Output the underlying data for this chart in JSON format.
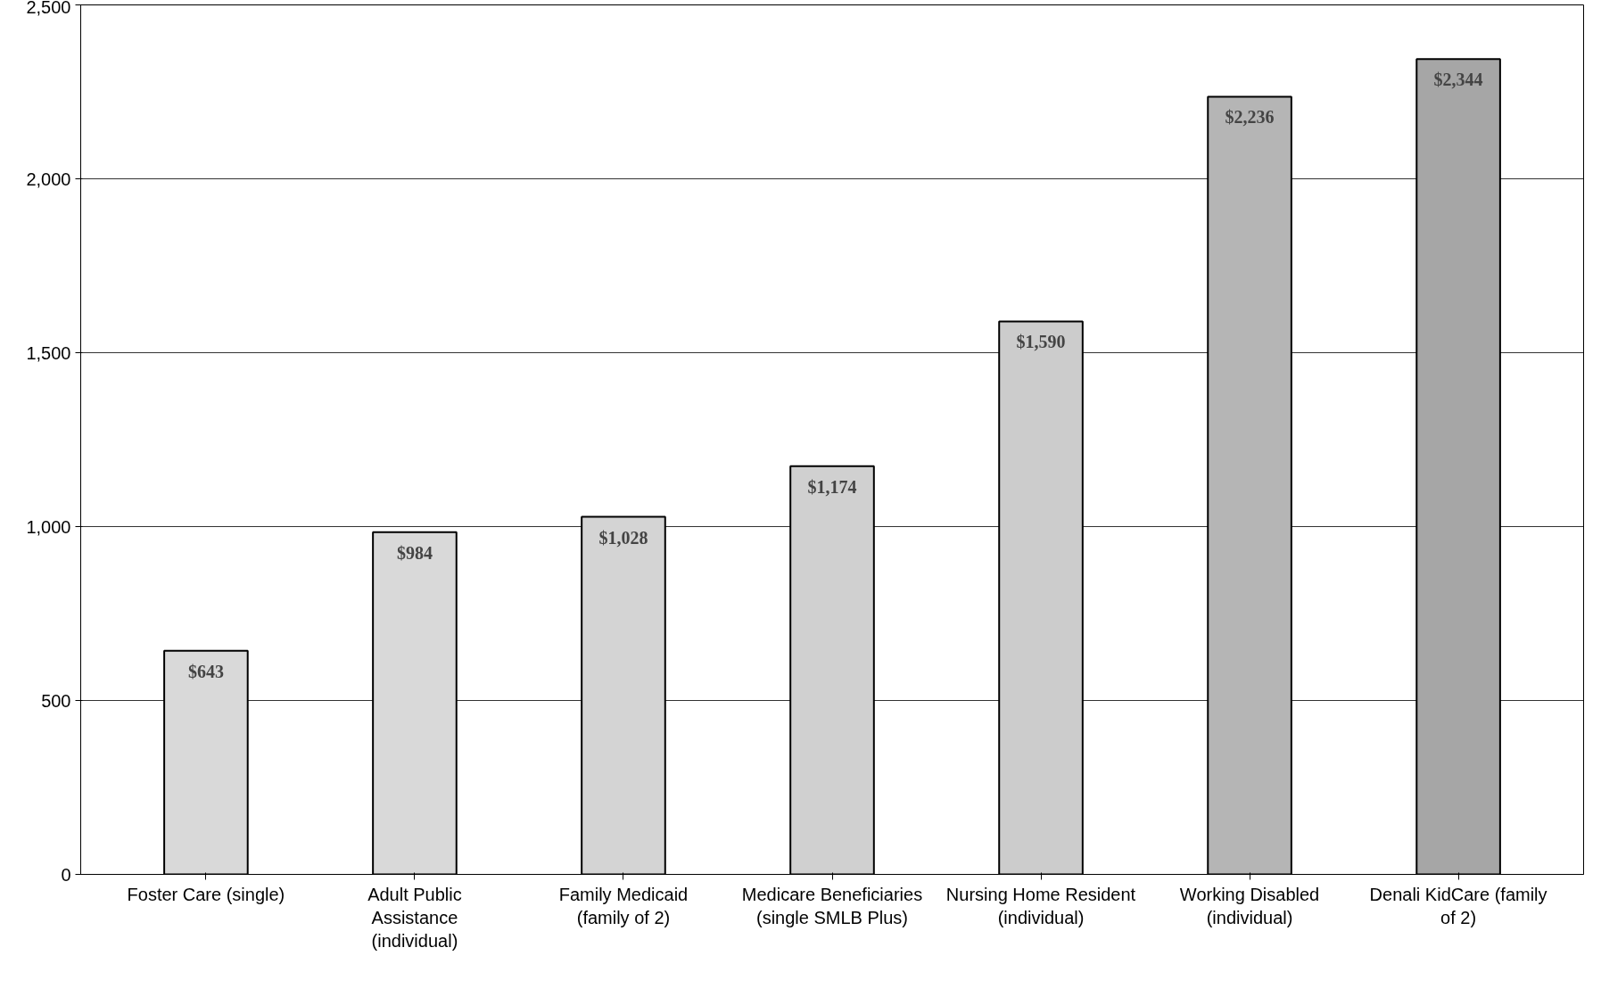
{
  "chart_data": {
    "type": "bar",
    "categories": [
      "Foster Care (single)",
      "Adult Public Assistance (individual)",
      "Family Medicaid (family of 2)",
      "Medicare Beneficiaries (single SMLB Plus)",
      "Nursing Home Resident (individual)",
      "Working Disabled (individual)",
      "Denali KidCare (family of 2)"
    ],
    "values": [
      643,
      984,
      1028,
      1174,
      1590,
      2236,
      2344
    ],
    "value_labels": [
      "$643",
      "$984",
      "$1,028",
      "$1,174",
      "$1,590",
      "$2,236",
      "$2,344"
    ],
    "colors": [
      "#d9d9d9",
      "#d9d9d9",
      "#d4d4d4",
      "#d0d0d0",
      "#cccccc",
      "#b5b5b5",
      "#a6a6a6"
    ],
    "ylim": [
      0,
      2500
    ],
    "yticks": [
      0,
      {
        "value": 500,
        "label": "500"
      },
      {
        "value": 1000,
        "label": "1,000"
      },
      {
        "value": 1500,
        "label": "1,500"
      },
      {
        "value": 2000,
        "label": "2,000"
      },
      {
        "value": 2500,
        "label": "2,500"
      }
    ],
    "grid": "y"
  }
}
